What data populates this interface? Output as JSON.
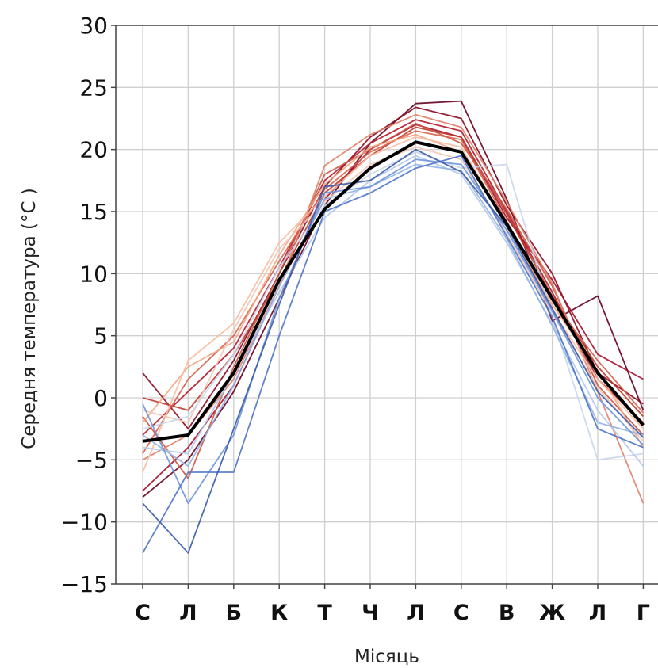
{
  "chart_data": {
    "type": "line",
    "title": "",
    "xlabel": "Місяць",
    "ylabel": "Середня температура (°C )",
    "categories": [
      "С",
      "Л",
      "Б",
      "К",
      "Т",
      "Ч",
      "Л",
      "С",
      "В",
      "Ж",
      "Л",
      "Г"
    ],
    "ylim": [
      -15,
      30
    ],
    "yticks": [
      30,
      25,
      20,
      15,
      10,
      5,
      0,
      -5,
      -10,
      -15
    ],
    "ytick_labels": [
      "30",
      "25",
      "20",
      "15",
      "10",
      "5",
      "0",
      "−5",
      "−10",
      "−15"
    ],
    "grid": true,
    "legend": "none",
    "mean_series": {
      "color": "#000000",
      "values": [
        -3.5,
        -3.0,
        2.0,
        9.5,
        15.2,
        18.5,
        20.6,
        19.8,
        14.0,
        8.0,
        2.0,
        -2.2
      ]
    },
    "series": [
      {
        "color": "#67001f",
        "values": [
          -8.0,
          -5.0,
          0.5,
          8.0,
          15.5,
          20.5,
          23.7,
          23.9,
          16.0,
          6.2,
          8.2,
          -1.0
        ]
      },
      {
        "color": "#8b0a22",
        "values": [
          2.0,
          -2.5,
          3.0,
          10.0,
          17.0,
          21.0,
          23.4,
          22.5,
          15.5,
          10.0,
          2.0,
          -0.5
        ]
      },
      {
        "color": "#a50f2c",
        "values": [
          -7.5,
          -4.0,
          1.0,
          9.0,
          16.0,
          20.0,
          22.0,
          21.0,
          14.5,
          9.5,
          3.5,
          1.5
        ]
      },
      {
        "color": "#b2182b",
        "values": [
          -3.0,
          0.5,
          4.0,
          10.5,
          17.5,
          20.5,
          22.4,
          21.5,
          15.0,
          8.5,
          1.5,
          -2.0
        ]
      },
      {
        "color": "#c0392b",
        "values": [
          0.0,
          -1.0,
          3.5,
          9.5,
          16.5,
          19.5,
          21.8,
          21.0,
          14.8,
          8.2,
          2.5,
          -1.5
        ]
      },
      {
        "color": "#ca5740",
        "values": [
          -1.5,
          -6.5,
          2.5,
          10.0,
          18.0,
          20.0,
          22.1,
          20.5,
          15.2,
          9.0,
          1.0,
          -3.0
        ]
      },
      {
        "color": "#d6604d",
        "values": [
          -4.5,
          1.5,
          5.0,
          11.0,
          16.8,
          19.8,
          21.5,
          20.8,
          14.2,
          7.8,
          3.0,
          -1.2
        ]
      },
      {
        "color": "#e08068",
        "values": [
          -5.0,
          -3.0,
          1.5,
          9.0,
          18.7,
          21.2,
          22.8,
          21.8,
          15.8,
          9.2,
          0.5,
          -8.5
        ]
      },
      {
        "color": "#f4a582",
        "values": [
          -2.0,
          2.5,
          4.5,
          11.5,
          17.2,
          20.2,
          21.2,
          19.8,
          13.8,
          7.5,
          2.2,
          -4.0
        ]
      },
      {
        "color": "#f7bca3",
        "values": [
          -6.0,
          3.0,
          6.0,
          12.5,
          16.2,
          19.5,
          21.0,
          20.2,
          14.0,
          7.0,
          1.5,
          -2.5
        ]
      },
      {
        "color": "#f0c6b6",
        "values": [
          -1.0,
          -2.0,
          5.5,
          12.0,
          15.8,
          18.8,
          20.2,
          19.2,
          13.2,
          6.8,
          0.8,
          -3.5
        ]
      },
      {
        "color": "#c9d6ec",
        "values": [
          -2.5,
          -1.5,
          3.5,
          10.5,
          15.5,
          18.0,
          19.8,
          18.5,
          18.8,
          6.5,
          -5.0,
          -4.5
        ]
      },
      {
        "color": "#b2c8ea",
        "values": [
          -4.0,
          -4.5,
          2.0,
          8.5,
          14.5,
          17.5,
          19.5,
          18.0,
          12.5,
          6.0,
          -1.0,
          -5.5
        ]
      },
      {
        "color": "#92b2e4",
        "values": [
          -3.0,
          -5.5,
          1.0,
          9.0,
          16.0,
          17.0,
          18.8,
          18.3,
          12.8,
          5.8,
          -2.0,
          -3.0
        ]
      },
      {
        "color": "#6d93d9",
        "values": [
          -0.5,
          -8.5,
          -3.0,
          8.0,
          16.5,
          17.0,
          19.2,
          18.8,
          13.5,
          7.0,
          0.0,
          -3.8
        ]
      },
      {
        "color": "#4e74c6",
        "values": [
          -12.5,
          -6.0,
          -6.0,
          5.0,
          15.0,
          16.5,
          18.5,
          19.5,
          13.0,
          6.5,
          -2.5,
          -4.0
        ]
      },
      {
        "color": "#3b5ba9",
        "values": [
          -8.5,
          -12.5,
          -2.5,
          7.5,
          17.0,
          17.5,
          20.0,
          18.2,
          13.8,
          7.2,
          0.5,
          -3.2
        ]
      }
    ]
  }
}
